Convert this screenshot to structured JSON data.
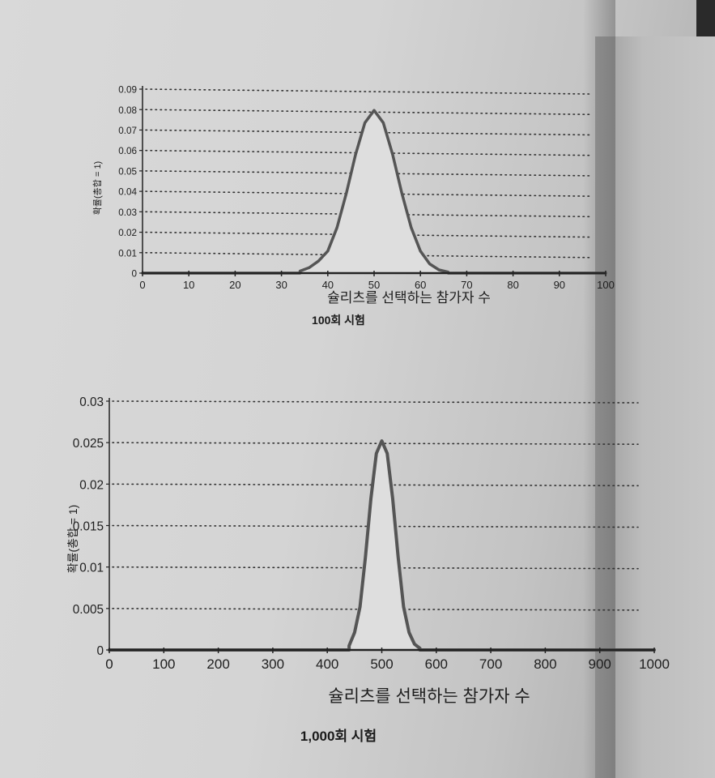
{
  "chart_data": [
    {
      "type": "area",
      "caption": "100회 시험",
      "xlabel": "슐리츠를 선택하는 참가자 수",
      "ylabel": "확률(총합 = 1)",
      "xlim": [
        0,
        100
      ],
      "ylim": [
        0,
        0.09
      ],
      "xticks": [
        0,
        10,
        20,
        30,
        40,
        50,
        60,
        70,
        80,
        90,
        100
      ],
      "yticks": [
        "0",
        "0.01",
        "0.02",
        "0.03",
        "0.04",
        "0.05",
        "0.06",
        "0.07",
        "0.08",
        "0.09"
      ],
      "grid": "dotted-horizontal",
      "x": [
        34,
        36,
        38,
        40,
        42,
        44,
        46,
        48,
        50,
        52,
        54,
        56,
        58,
        60,
        62,
        64,
        66
      ],
      "y": [
        0.001,
        0.0027,
        0.0059,
        0.0108,
        0.0223,
        0.039,
        0.058,
        0.0735,
        0.0796,
        0.0735,
        0.058,
        0.039,
        0.0223,
        0.0108,
        0.0045,
        0.0016,
        0.0005
      ]
    },
    {
      "type": "area",
      "caption": "1,000회 시험",
      "xlabel": "슐리츠를 선택하는 참가자 수",
      "ylabel": "확률(총합 = 1)",
      "xlim": [
        0,
        1000
      ],
      "ylim": [
        0,
        0.03
      ],
      "xticks": [
        0,
        100,
        200,
        300,
        400,
        500,
        600,
        700,
        800,
        900,
        1000
      ],
      "yticks": [
        "0",
        "0.005",
        "0.01",
        "0.015",
        "0.02",
        "0.025",
        "0.03"
      ],
      "grid": "dotted-horizontal",
      "x": [
        440,
        450,
        460,
        470,
        480,
        490,
        500,
        510,
        520,
        530,
        540,
        550,
        560,
        570
      ],
      "y": [
        0.0005,
        0.0021,
        0.0052,
        0.0112,
        0.0182,
        0.0237,
        0.0252,
        0.0237,
        0.0182,
        0.0112,
        0.0052,
        0.0021,
        0.0007,
        0.0002
      ]
    }
  ],
  "colors": {
    "curve": "#555555",
    "fill": "#dedede",
    "grid": "#333333",
    "axis": "#222222"
  }
}
